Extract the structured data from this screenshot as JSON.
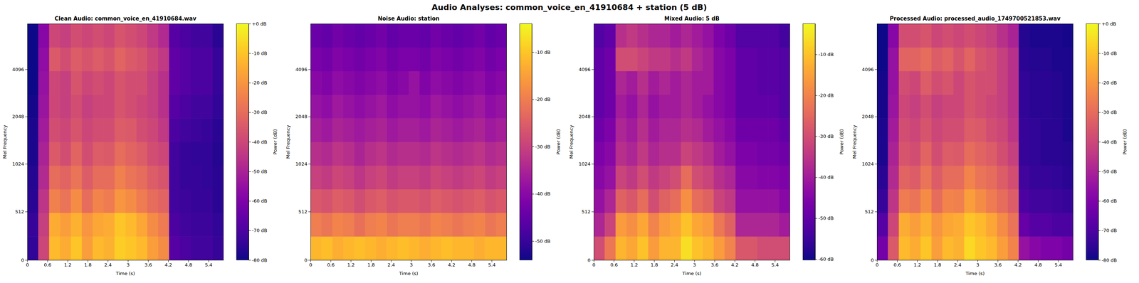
{
  "title": "Audio Analyses: common_voice_en_41910684 + station (5 dB)",
  "chart_data": [
    {
      "type": "heatmap",
      "title": "Clean Audio: common_voice_en_41910684.wav",
      "x_label": "Time (s)",
      "y_label": "Mel Frequency",
      "xlim": [
        0,
        5.85
      ],
      "xticks": [
        0,
        0.6,
        1.2,
        1.8,
        2.4,
        3,
        3.6,
        4.2,
        4.8,
        5.4
      ],
      "ylim": [
        0,
        8000
      ],
      "yticks": [
        0,
        512,
        1024,
        2048,
        4096
      ],
      "x_edges": [
        0,
        0.325,
        0.65,
        0.975,
        1.3,
        1.625,
        1.95,
        2.275,
        2.6,
        2.925,
        3.25,
        3.575,
        3.9,
        4.225,
        4.55,
        4.875,
        5.2,
        5.525,
        5.85
      ],
      "y_edges": [
        0,
        250,
        500,
        750,
        1000,
        1414,
        2000,
        2828,
        4000,
        5657,
        8000
      ],
      "cells": [
        [
          -75,
          -40,
          -12,
          -15,
          -10,
          -18,
          -12,
          -14,
          -8,
          -10,
          -12,
          -18,
          -22,
          -68,
          -70,
          -72,
          -72,
          -74
        ],
        [
          -74,
          -42,
          -15,
          -18,
          -14,
          -20,
          -16,
          -15,
          -10,
          -12,
          -16,
          -22,
          -26,
          -70,
          -72,
          -73,
          -73,
          -75
        ],
        [
          -76,
          -45,
          -25,
          -28,
          -22,
          -30,
          -24,
          -26,
          -20,
          -22,
          -26,
          -30,
          -32,
          -72,
          -73,
          -74,
          -74,
          -76
        ],
        [
          -77,
          -48,
          -30,
          -32,
          -28,
          -34,
          -30,
          -30,
          -25,
          -28,
          -30,
          -34,
          -36,
          -72,
          -74,
          -74,
          -75,
          -76
        ],
        [
          -78,
          -50,
          -35,
          -38,
          -32,
          -38,
          -34,
          -35,
          -30,
          -32,
          -34,
          -38,
          -40,
          -72,
          -74,
          -75,
          -75,
          -77
        ],
        [
          -78,
          -52,
          -38,
          -40,
          -36,
          -40,
          -38,
          -38,
          -34,
          -35,
          -38,
          -40,
          -44,
          -70,
          -72,
          -73,
          -74,
          -76
        ],
        [
          -79,
          -54,
          -40,
          -42,
          -38,
          -42,
          -40,
          -40,
          -36,
          -38,
          -40,
          -42,
          -46,
          -68,
          -70,
          -72,
          -72,
          -75
        ],
        [
          -80,
          -55,
          -40,
          -42,
          -36,
          -40,
          -38,
          -40,
          -36,
          -38,
          -38,
          -42,
          -46,
          -66,
          -68,
          -70,
          -70,
          -74
        ],
        [
          -80,
          -56,
          -35,
          -38,
          -34,
          -36,
          -34,
          -36,
          -32,
          -35,
          -36,
          -40,
          -44,
          -66,
          -68,
          -70,
          -70,
          -74
        ],
        [
          -80,
          -58,
          -40,
          -42,
          -38,
          -40,
          -38,
          -40,
          -36,
          -38,
          -40,
          -44,
          -48,
          -68,
          -70,
          -72,
          -72,
          -76
        ]
      ],
      "colorbar": {
        "label": "Power (dB)",
        "range": [
          -80,
          0
        ],
        "ticks": [
          {
            "value": 0,
            "label": "+0 dB"
          },
          {
            "value": -10,
            "label": "-10 dB"
          },
          {
            "value": -20,
            "label": "-20 dB"
          },
          {
            "value": -30,
            "label": "-30 dB"
          },
          {
            "value": -40,
            "label": "-40 dB"
          },
          {
            "value": -50,
            "label": "-50 dB"
          },
          {
            "value": -60,
            "label": "-60 dB"
          },
          {
            "value": -70,
            "label": "-70 dB"
          },
          {
            "value": -80,
            "label": "-80 dB"
          }
        ]
      }
    },
    {
      "type": "heatmap",
      "title": "Noise Audio: station",
      "x_label": "Time (s)",
      "y_label": "Mel Frequency",
      "xlim": [
        0,
        5.85
      ],
      "xticks": [
        0,
        0.6,
        1.2,
        1.8,
        2.4,
        3,
        3.6,
        4.2,
        4.8,
        5.4
      ],
      "ylim": [
        0,
        8000
      ],
      "yticks": [
        0,
        512,
        1024,
        2048,
        4096
      ],
      "x_edges": [
        0,
        0.325,
        0.65,
        0.975,
        1.3,
        1.625,
        1.95,
        2.275,
        2.6,
        2.925,
        3.25,
        3.575,
        3.9,
        4.225,
        4.55,
        4.875,
        5.2,
        5.525,
        5.85
      ],
      "y_edges": [
        0,
        250,
        500,
        750,
        1000,
        1414,
        2000,
        2828,
        4000,
        5657,
        8000
      ],
      "cells": [
        [
          -12,
          -11,
          -13,
          -12,
          -11,
          -12,
          -13,
          -12,
          -11,
          -12,
          -13,
          -12,
          -11,
          -12,
          -12,
          -13,
          -12,
          -12
        ],
        [
          -20,
          -21,
          -19,
          -20,
          -22,
          -20,
          -19,
          -21,
          -20,
          -20,
          -21,
          -19,
          -20,
          -21,
          -20,
          -19,
          -21,
          -20
        ],
        [
          -26,
          -27,
          -25,
          -26,
          -28,
          -26,
          -25,
          -27,
          -26,
          -26,
          -27,
          -25,
          -26,
          -27,
          -26,
          -25,
          -27,
          -26
        ],
        [
          -30,
          -31,
          -29,
          -30,
          -32,
          -30,
          -29,
          -31,
          -30,
          -30,
          -31,
          -29,
          -30,
          -31,
          -30,
          -29,
          -31,
          -30
        ],
        [
          -33,
          -34,
          -32,
          -33,
          -35,
          -33,
          -32,
          -34,
          -33,
          -33,
          -34,
          -32,
          -33,
          -34,
          -33,
          -32,
          -34,
          -33
        ],
        [
          -36,
          -37,
          -35,
          -36,
          -37,
          -36,
          -35,
          -37,
          -36,
          -36,
          -37,
          -35,
          -36,
          -37,
          -36,
          -35,
          -37,
          -36
        ],
        [
          -38,
          -39,
          -37,
          -38,
          -39,
          -38,
          -37,
          -39,
          -38,
          -38,
          -39,
          -37,
          -38,
          -39,
          -38,
          -37,
          -39,
          -38
        ],
        [
          -40,
          -41,
          -39,
          -40,
          -41,
          -40,
          -39,
          -41,
          -40,
          -38,
          -41,
          -39,
          -40,
          -41,
          -40,
          -39,
          -41,
          -40
        ],
        [
          -42,
          -43,
          -41,
          -42,
          -43,
          -42,
          -41,
          -43,
          -42,
          -42,
          -43,
          -41,
          -42,
          -43,
          -42,
          -41,
          -43,
          -42
        ],
        [
          -44,
          -45,
          -43,
          -44,
          -45,
          -44,
          -43,
          -45,
          -44,
          -44,
          -45,
          -43,
          -44,
          -45,
          -44,
          -43,
          -45,
          -44
        ]
      ],
      "colorbar": {
        "label": "Power (dB)",
        "range": [
          -54,
          -4
        ],
        "ticks": [
          {
            "value": -10,
            "label": "-10 dB"
          },
          {
            "value": -20,
            "label": "-20 dB"
          },
          {
            "value": -30,
            "label": "-30 dB"
          },
          {
            "value": -40,
            "label": "-40 dB"
          },
          {
            "value": -50,
            "label": "-50 dB"
          }
        ]
      }
    },
    {
      "type": "heatmap",
      "title": "Mixed Audio: 5 dB",
      "x_label": "Time (s)",
      "y_label": "Mel Frequency",
      "xlim": [
        0,
        5.85
      ],
      "xticks": [
        0,
        0.6,
        1.2,
        1.8,
        2.4,
        3,
        3.6,
        4.2,
        4.8,
        5.4
      ],
      "ylim": [
        0,
        8000
      ],
      "yticks": [
        0,
        512,
        1024,
        2048,
        4096
      ],
      "x_edges": [
        0,
        0.325,
        0.65,
        0.975,
        1.3,
        1.625,
        1.95,
        2.275,
        2.6,
        2.925,
        3.25,
        3.575,
        3.9,
        4.225,
        4.55,
        4.875,
        5.2,
        5.525,
        5.85
      ],
      "y_edges": [
        0,
        250,
        500,
        750,
        1000,
        1414,
        2000,
        2828,
        4000,
        5657,
        8000
      ],
      "cells": [
        [
          -30,
          -22,
          -12,
          -14,
          -10,
          -16,
          -12,
          -12,
          -6,
          -10,
          -12,
          -16,
          -20,
          -28,
          -28,
          -30,
          -30,
          -30
        ],
        [
          -38,
          -32,
          -16,
          -18,
          -14,
          -20,
          -16,
          -14,
          -10,
          -14,
          -16,
          -22,
          -26,
          -38,
          -38,
          -38,
          -38,
          -40
        ],
        [
          -42,
          -38,
          -26,
          -28,
          -24,
          -30,
          -26,
          -24,
          -18,
          -24,
          -26,
          -32,
          -34,
          -42,
          -42,
          -42,
          -42,
          -44
        ],
        [
          -44,
          -42,
          -32,
          -34,
          -30,
          -34,
          -32,
          -30,
          -24,
          -30,
          -32,
          -36,
          -38,
          -44,
          -44,
          -45,
          -45,
          -46
        ],
        [
          -46,
          -44,
          -36,
          -38,
          -34,
          -38,
          -36,
          -36,
          -32,
          -34,
          -36,
          -40,
          -42,
          -46,
          -46,
          -47,
          -47,
          -48
        ],
        [
          -48,
          -46,
          -38,
          -40,
          -36,
          -40,
          -38,
          -38,
          -36,
          -37,
          -40,
          -42,
          -44,
          -48,
          -48,
          -48,
          -48,
          -50
        ],
        [
          -50,
          -48,
          -40,
          -42,
          -38,
          -42,
          -40,
          -40,
          -38,
          -40,
          -42,
          -44,
          -46,
          -50,
          -50,
          -50,
          -50,
          -52
        ],
        [
          -50,
          -48,
          -38,
          -40,
          -36,
          -40,
          -38,
          -40,
          -38,
          -40,
          -40,
          -44,
          -46,
          -50,
          -50,
          -51,
          -51,
          -52
        ],
        [
          -50,
          -48,
          -30,
          -30,
          -32,
          -34,
          -34,
          -36,
          -34,
          -38,
          -40,
          -44,
          -46,
          -50,
          -50,
          -51,
          -51,
          -52
        ],
        [
          -52,
          -50,
          -36,
          -34,
          -36,
          -38,
          -38,
          -40,
          -38,
          -40,
          -42,
          -46,
          -48,
          -52,
          -52,
          -52,
          -52,
          -54
        ]
      ],
      "colorbar": {
        "label": "Power (dB)",
        "range": [
          -60.2,
          -2.5
        ],
        "ticks": [
          {
            "value": -10,
            "label": "-10 dB"
          },
          {
            "value": -20,
            "label": "-20 dB"
          },
          {
            "value": -30,
            "label": "-30 dB"
          },
          {
            "value": -40,
            "label": "-40 dB"
          },
          {
            "value": -50,
            "label": "-50 dB"
          },
          {
            "value": -60,
            "label": "-60 dB"
          }
        ]
      }
    },
    {
      "type": "heatmap",
      "title": "Processed Audio: processed_audio_1749700521853.wav",
      "x_label": "Time (s)",
      "y_label": "Mel Frequency",
      "xlim": [
        0,
        5.85
      ],
      "xticks": [
        0,
        0.6,
        1.2,
        1.8,
        2.4,
        3,
        3.6,
        4.2,
        4.8,
        5.4
      ],
      "ylim": [
        0,
        8000
      ],
      "yticks": [
        0,
        512,
        1024,
        2048,
        4096
      ],
      "x_edges": [
        0,
        0.325,
        0.65,
        0.975,
        1.3,
        1.625,
        1.95,
        2.275,
        2.6,
        2.925,
        3.25,
        3.575,
        3.9,
        4.225,
        4.55,
        4.875,
        5.2,
        5.525,
        5.85
      ],
      "y_edges": [
        0,
        250,
        500,
        750,
        1000,
        1414,
        2000,
        2828,
        4000,
        5657,
        8000
      ],
      "cells": [
        [
          -62,
          -35,
          -12,
          -15,
          -10,
          -18,
          -12,
          -14,
          -6,
          -10,
          -12,
          -18,
          -24,
          -55,
          -58,
          -60,
          -60,
          -62
        ],
        [
          -68,
          -40,
          -15,
          -18,
          -14,
          -20,
          -16,
          -15,
          -10,
          -12,
          -16,
          -22,
          -28,
          -65,
          -68,
          -68,
          -70,
          -70
        ],
        [
          -74,
          -45,
          -26,
          -28,
          -22,
          -30,
          -24,
          -25,
          -18,
          -22,
          -26,
          -30,
          -34,
          -70,
          -72,
          -72,
          -73,
          -74
        ],
        [
          -76,
          -48,
          -32,
          -34,
          -28,
          -34,
          -30,
          -30,
          -24,
          -28,
          -30,
          -34,
          -38,
          -72,
          -74,
          -74,
          -75,
          -76
        ],
        [
          -78,
          -50,
          -36,
          -38,
          -32,
          -38,
          -34,
          -35,
          -30,
          -32,
          -34,
          -38,
          -42,
          -74,
          -75,
          -76,
          -76,
          -77
        ],
        [
          -78,
          -52,
          -38,
          -40,
          -36,
          -40,
          -38,
          -38,
          -34,
          -35,
          -38,
          -40,
          -45,
          -74,
          -75,
          -76,
          -76,
          -78
        ],
        [
          -79,
          -54,
          -40,
          -42,
          -38,
          -42,
          -40,
          -40,
          -36,
          -38,
          -40,
          -42,
          -46,
          -75,
          -76,
          -76,
          -77,
          -78
        ],
        [
          -79,
          -55,
          -38,
          -40,
          -34,
          -38,
          -36,
          -40,
          -36,
          -38,
          -38,
          -42,
          -46,
          -75,
          -76,
          -76,
          -77,
          -78
        ],
        [
          -80,
          -55,
          -32,
          -32,
          -30,
          -34,
          -32,
          -36,
          -32,
          -36,
          -38,
          -42,
          -46,
          -76,
          -77,
          -77,
          -78,
          -78
        ],
        [
          -80,
          -58,
          -38,
          -38,
          -36,
          -40,
          -38,
          -40,
          -38,
          -40,
          -42,
          -46,
          -50,
          -77,
          -78,
          -78,
          -78,
          -79
        ]
      ],
      "colorbar": {
        "label": "Power (dB)",
        "range": [
          -80,
          0
        ],
        "ticks": [
          {
            "value": 0,
            "label": "+0 dB"
          },
          {
            "value": -10,
            "label": "-10 dB"
          },
          {
            "value": -20,
            "label": "-20 dB"
          },
          {
            "value": -30,
            "label": "-30 dB"
          },
          {
            "value": -40,
            "label": "-40 dB"
          },
          {
            "value": -50,
            "label": "-50 dB"
          },
          {
            "value": -60,
            "label": "-60 dB"
          },
          {
            "value": -70,
            "label": "-70 dB"
          },
          {
            "value": -80,
            "label": "-80 dB"
          }
        ]
      }
    }
  ]
}
